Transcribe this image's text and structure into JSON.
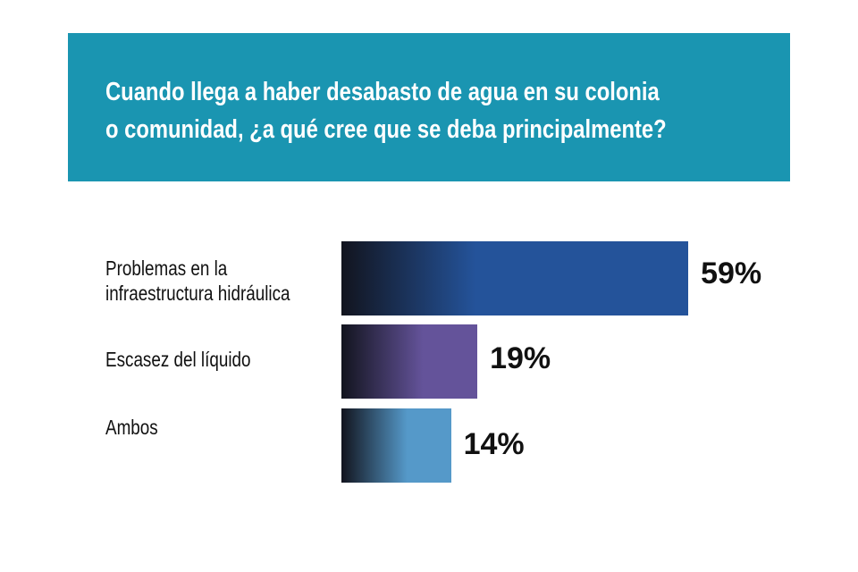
{
  "chart_data": {
    "type": "bar",
    "orientation": "horizontal",
    "title_lines": [
      "Cuando llega a haber desabasto de agua en su colonia",
      "o comunidad, ¿a qué cree que se deba principalmente?"
    ],
    "categories": [
      [
        "Problemas en la",
        "infraestructura hidráulica"
      ],
      [
        "Escasez del líquido"
      ],
      [
        "Ambos"
      ]
    ],
    "values": [
      59,
      19,
      14
    ],
    "value_labels": [
      "59%",
      "19%",
      "14%"
    ],
    "unit": "%",
    "grid": false,
    "colors": {
      "header_bg": "#1a95b1",
      "bars": [
        "#24539a",
        "#64539a",
        "#5599c9"
      ],
      "gradient_start": "#12141e"
    }
  }
}
